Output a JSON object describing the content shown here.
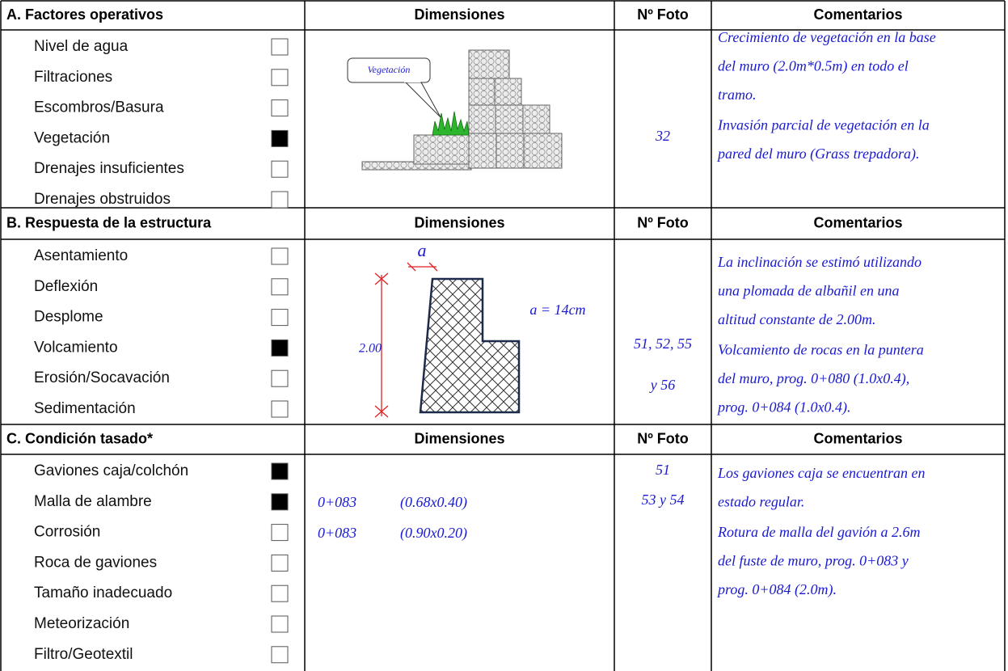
{
  "sections": [
    {
      "title": "A. Factores operativos",
      "headers": {
        "dimensions": "Dimensiones",
        "photo": "Nº Foto",
        "comments": "Comentarios"
      },
      "items": [
        {
          "label": "Nivel de agua",
          "checked": false
        },
        {
          "label": "Filtraciones",
          "checked": false
        },
        {
          "label": "Escombros/Basura",
          "checked": false
        },
        {
          "label": "Vegetación",
          "checked": true
        },
        {
          "label": "Drenajes insuficientes",
          "checked": false
        },
        {
          "label": "Drenajes obstruidos",
          "checked": false
        }
      ],
      "diagram": {
        "callout": "Vegetación"
      },
      "photo": [
        "32"
      ],
      "comments": [
        [
          "Crecimiento de vegetación en la base",
          "del muro (2.0m*0.5m) en todo el",
          "tramo."
        ],
        [
          "Invasión parcial de vegetación en la",
          "pared del muro (Grass trepadora)."
        ]
      ]
    },
    {
      "title": "B. Respuesta de la estructura",
      "headers": {
        "dimensions": "Dimensiones",
        "photo": "Nº Foto",
        "comments": "Comentarios"
      },
      "items": [
        {
          "label": "Asentamiento",
          "checked": false
        },
        {
          "label": "Deflexión",
          "checked": false
        },
        {
          "label": "Desplome",
          "checked": false
        },
        {
          "label": "Volcamiento",
          "checked": true
        },
        {
          "label": "Erosión/Socavación",
          "checked": false
        },
        {
          "label": "Sedimentación",
          "checked": false
        }
      ],
      "diagram": {
        "dim_a": "a",
        "dim_a_value": "a = 14cm",
        "height": "2.00"
      },
      "photo": [
        "51, 52, 55",
        "y 56"
      ],
      "comments": [
        [
          "La inclinación se estimó utilizando",
          "una plomada de albañil en una",
          "altitud constante de 2.00m."
        ],
        [
          "Volcamiento de rocas en la puntera",
          "del muro, prog. 0+080 (1.0x0.4),",
          "prog. 0+084 (1.0x0.4)."
        ]
      ]
    },
    {
      "title": "C. Condición tasado*",
      "headers": {
        "dimensions": "Dimensiones",
        "photo": "Nº Foto",
        "comments": "Comentarios"
      },
      "items": [
        {
          "label": "Gaviones caja/colchón",
          "checked": true
        },
        {
          "label": "Malla de alambre",
          "checked": true
        },
        {
          "label": "Corrosión",
          "checked": false
        },
        {
          "label": "Roca de gaviones",
          "checked": false
        },
        {
          "label": "Tamaño inadecuado",
          "checked": false
        },
        {
          "label": "Meteorización",
          "checked": false
        },
        {
          "label": "Filtro/Geotextil",
          "checked": false
        }
      ],
      "diagram": {
        "rows": [
          [
            "0+083",
            "(0.68x0.40)"
          ],
          [
            "0+083",
            "(0.90x0.20)"
          ]
        ]
      },
      "photo": [
        "51",
        "53 y 54"
      ],
      "comments": [
        [
          "Los gaviones caja se encuentran en",
          "estado regular."
        ],
        [
          "Rotura de malla del gavión a 2.6m",
          "del fuste de muro, prog. 0+083 y",
          "prog. 0+084 (2.0m)."
        ]
      ]
    }
  ]
}
